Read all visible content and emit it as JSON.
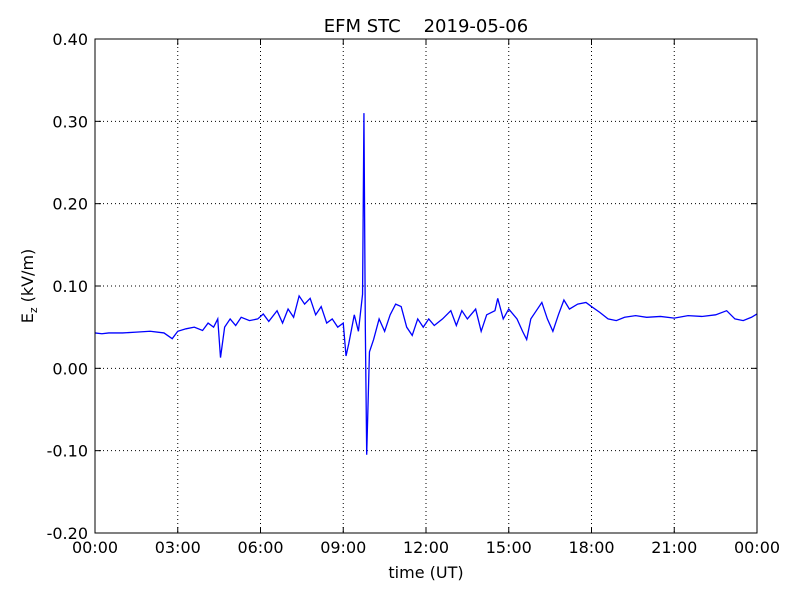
{
  "chart_data": {
    "type": "line",
    "title": "EFM STC    2019-05-06",
    "xlabel": "time (UT)",
    "ylabel": [
      "E",
      "z",
      "(kV/m)"
    ],
    "xlim": [
      0,
      24
    ],
    "xticks": [
      {
        "value": 0,
        "label": "00:00"
      },
      {
        "value": 3,
        "label": "03:00"
      },
      {
        "value": 6,
        "label": "06:00"
      },
      {
        "value": 9,
        "label": "09:00"
      },
      {
        "value": 12,
        "label": "12:00"
      },
      {
        "value": 15,
        "label": "15:00"
      },
      {
        "value": 18,
        "label": "18:00"
      },
      {
        "value": 21,
        "label": "21:00"
      },
      {
        "value": 24,
        "label": "00:00"
      }
    ],
    "ylim": [
      -0.2,
      0.4
    ],
    "yticks": [
      {
        "value": -0.2,
        "label": "-0.20"
      },
      {
        "value": -0.1,
        "label": "-0.10"
      },
      {
        "value": 0,
        "label": "0.00"
      },
      {
        "value": 0.1,
        "label": "0.10"
      },
      {
        "value": 0.2,
        "label": "0.20"
      },
      {
        "value": 0.3,
        "label": "0.30"
      },
      {
        "value": 0.4,
        "label": "0.40"
      }
    ],
    "grid": true,
    "series": [
      {
        "color": "#0000ff",
        "x": [
          0.0,
          0.25,
          0.5,
          1.0,
          1.5,
          2.0,
          2.5,
          2.8,
          3.0,
          3.3,
          3.6,
          3.9,
          4.1,
          4.3,
          4.45,
          4.55,
          4.7,
          4.9,
          5.1,
          5.3,
          5.6,
          5.9,
          6.1,
          6.3,
          6.6,
          6.8,
          7.0,
          7.2,
          7.4,
          7.6,
          7.8,
          8.0,
          8.2,
          8.4,
          8.6,
          8.8,
          9.0,
          9.1,
          9.2,
          9.4,
          9.55,
          9.7,
          9.75,
          9.8,
          9.85,
          9.95,
          10.1,
          10.3,
          10.5,
          10.7,
          10.9,
          11.1,
          11.3,
          11.5,
          11.7,
          11.9,
          12.1,
          12.3,
          12.6,
          12.9,
          13.1,
          13.3,
          13.5,
          13.8,
          14.0,
          14.2,
          14.5,
          14.6,
          14.8,
          15.0,
          15.3,
          15.5,
          15.65,
          15.8,
          16.0,
          16.2,
          16.4,
          16.6,
          16.8,
          17.0,
          17.2,
          17.5,
          17.8,
          18.0,
          18.3,
          18.6,
          18.9,
          19.2,
          19.6,
          20.0,
          20.5,
          21.0,
          21.5,
          22.0,
          22.5,
          22.9,
          23.2,
          23.5,
          23.8,
          24.0
        ],
        "values": [
          0.043,
          0.042,
          0.043,
          0.043,
          0.044,
          0.045,
          0.043,
          0.036,
          0.045,
          0.048,
          0.05,
          0.046,
          0.055,
          0.05,
          0.06,
          0.013,
          0.05,
          0.06,
          0.052,
          0.062,
          0.058,
          0.06,
          0.066,
          0.057,
          0.07,
          0.055,
          0.072,
          0.062,
          0.088,
          0.078,
          0.085,
          0.065,
          0.075,
          0.055,
          0.06,
          0.05,
          0.055,
          0.015,
          0.03,
          0.065,
          0.045,
          0.09,
          0.31,
          0.05,
          -0.105,
          0.02,
          0.035,
          0.06,
          0.045,
          0.065,
          0.078,
          0.075,
          0.05,
          0.04,
          0.06,
          0.05,
          0.06,
          0.052,
          0.06,
          0.07,
          0.052,
          0.07,
          0.06,
          0.072,
          0.045,
          0.065,
          0.07,
          0.085,
          0.06,
          0.072,
          0.06,
          0.045,
          0.035,
          0.06,
          0.07,
          0.08,
          0.06,
          0.045,
          0.065,
          0.083,
          0.072,
          0.078,
          0.08,
          0.075,
          0.068,
          0.06,
          0.058,
          0.062,
          0.064,
          0.062,
          0.063,
          0.061,
          0.064,
          0.063,
          0.065,
          0.07,
          0.06,
          0.058,
          0.062,
          0.066
        ]
      }
    ]
  }
}
